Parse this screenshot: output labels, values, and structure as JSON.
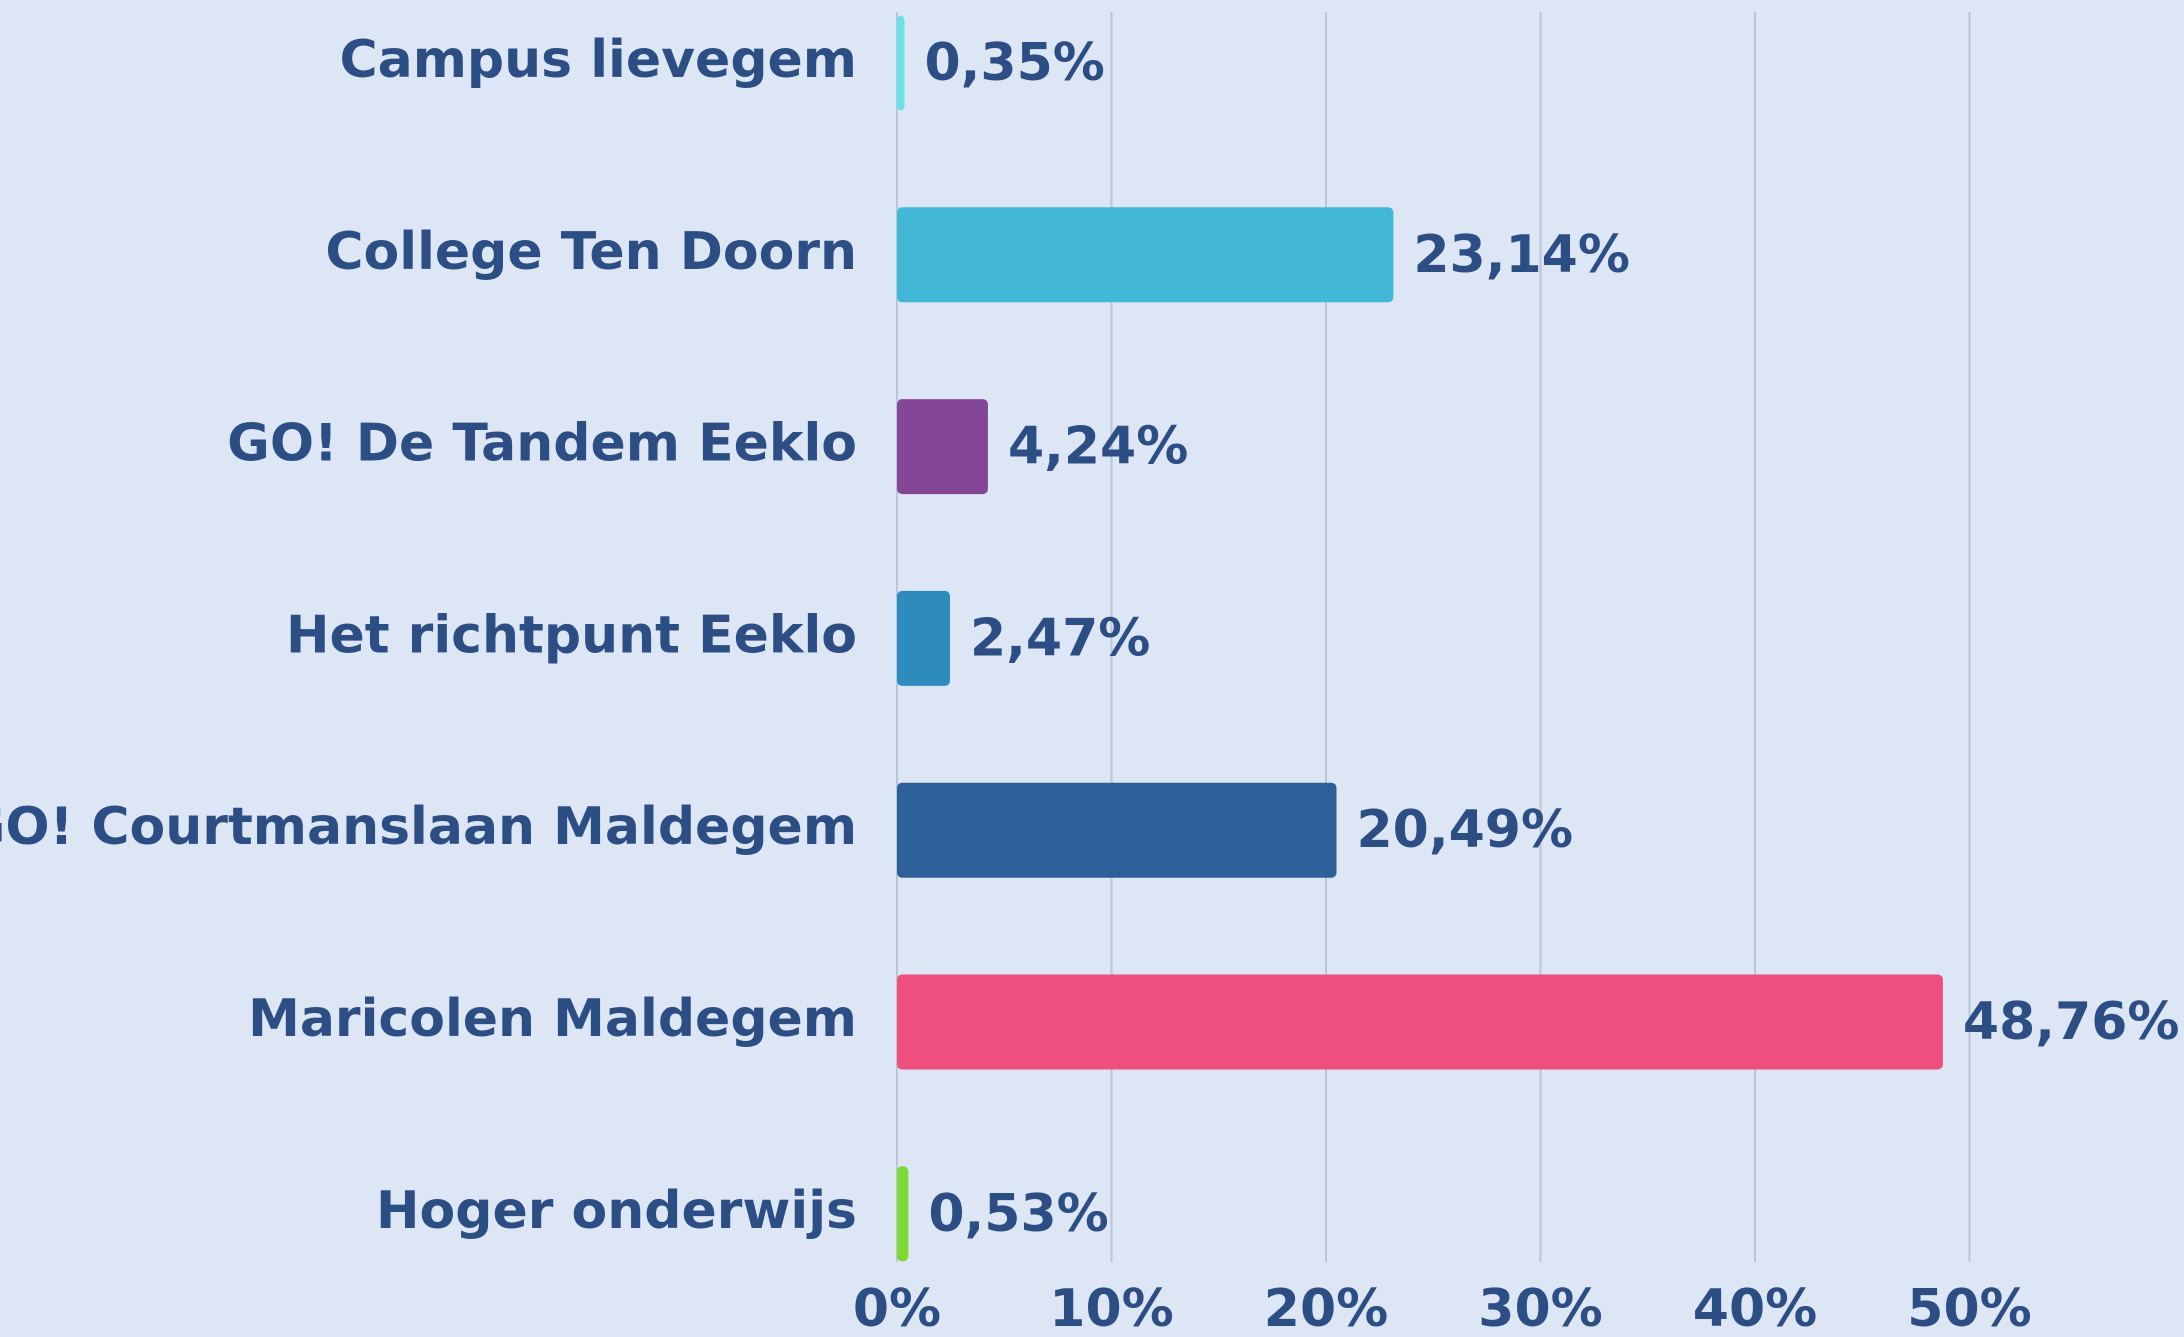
{
  "chart_data": {
    "type": "bar",
    "orientation": "horizontal",
    "categories": [
      "Campus lievegem",
      "College Ten Doorn",
      "GO! De Tandem Eeklo",
      "Het richtpunt Eeklo",
      "GO! Courtmanslaan Maldegem",
      "Maricolen Maldegem",
      "Hoger onderwijs"
    ],
    "values": [
      0.35,
      23.14,
      4.24,
      2.47,
      20.49,
      48.76,
      0.53
    ],
    "value_labels": [
      "0,35%",
      "23,14%",
      "4,24%",
      "2,47%",
      "20,49%",
      "48,76%",
      "0,53%"
    ],
    "colors": [
      "#6ae2ea",
      "#42b8d6",
      "#844797",
      "#2d8bbd",
      "#2d5f98",
      "#ef4f7e",
      "#7ed934"
    ],
    "xlim": [
      0,
      60
    ],
    "xticks": [
      {
        "value": 0,
        "label": "0%"
      },
      {
        "value": 10,
        "label": "10%"
      },
      {
        "value": 20,
        "label": "20%"
      },
      {
        "value": 30,
        "label": "30%"
      },
      {
        "value": 40,
        "label": "40%"
      },
      {
        "value": 50,
        "label": "50%"
      }
    ],
    "grid": true
  }
}
